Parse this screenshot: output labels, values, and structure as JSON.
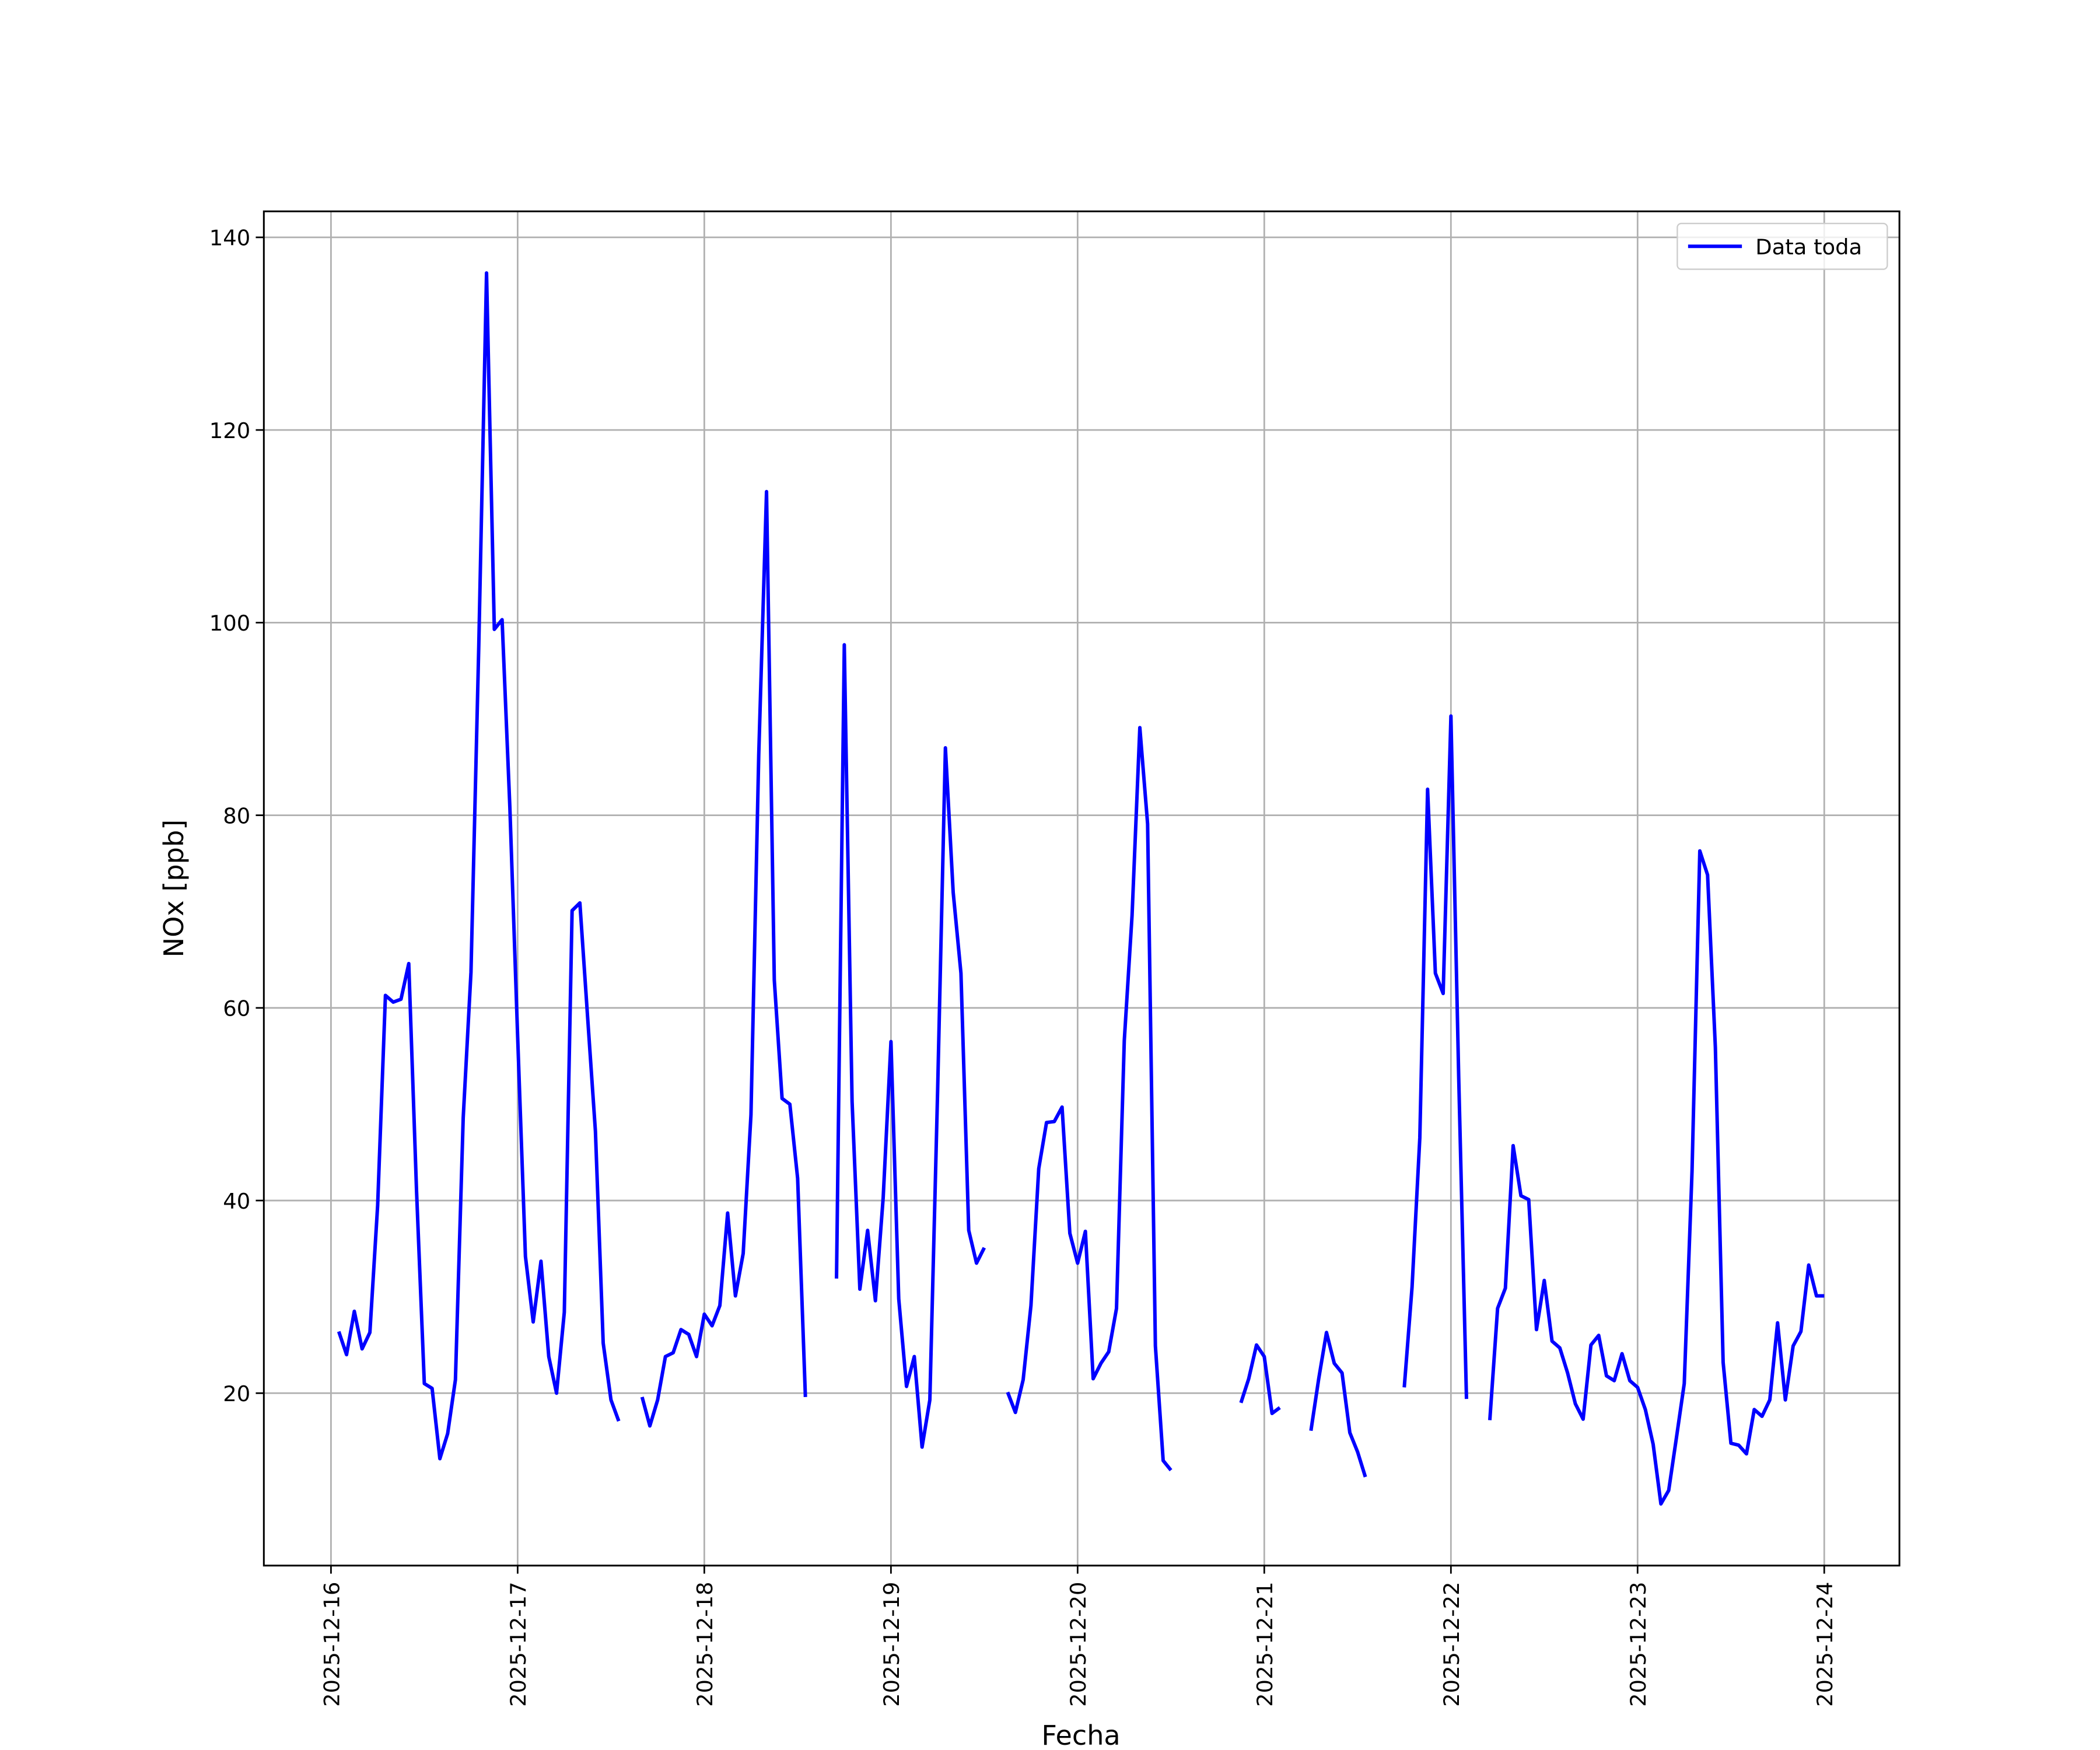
{
  "chart_data": {
    "type": "line",
    "xlabel": "Fecha",
    "ylabel": "NOx [ppb]",
    "legend": "upper right",
    "grid": true,
    "xlim": [
      "2025-12-15 15:22",
      "2025-12-24 09:40"
    ],
    "xticks": [
      "2025-12-16",
      "2025-12-17",
      "2025-12-18",
      "2025-12-19",
      "2025-12-20",
      "2025-12-21",
      "2025-12-22",
      "2025-12-23",
      "2025-12-24"
    ],
    "ylim": [
      2.1,
      142.7
    ],
    "yticks": [
      20,
      40,
      60,
      80,
      100,
      120,
      140
    ],
    "x": [
      "2025-12-16 01:00",
      "2025-12-16 02:00",
      "2025-12-16 03:00",
      "2025-12-16 04:00",
      "2025-12-16 05:00",
      "2025-12-16 06:00",
      "2025-12-16 07:00",
      "2025-12-16 08:00",
      "2025-12-16 09:00",
      "2025-12-16 10:00",
      "2025-12-16 11:00",
      "2025-12-16 12:00",
      "2025-12-16 13:00",
      "2025-12-16 14:00",
      "2025-12-16 15:00",
      "2025-12-16 16:00",
      "2025-12-16 17:00",
      "2025-12-16 18:00",
      "2025-12-16 19:00",
      "2025-12-16 20:00",
      "2025-12-16 21:00",
      "2025-12-16 22:00",
      "2025-12-16 23:00",
      "2025-12-17 00:00",
      "2025-12-17 01:00",
      "2025-12-17 02:00",
      "2025-12-17 03:00",
      "2025-12-17 04:00",
      "2025-12-17 05:00",
      "2025-12-17 06:00",
      "2025-12-17 07:00",
      "2025-12-17 08:00",
      "2025-12-17 09:00",
      "2025-12-17 10:00",
      "2025-12-17 11:00",
      "2025-12-17 12:00",
      "2025-12-17 13:00",
      "2025-12-17 14:00",
      "2025-12-17 15:00",
      "2025-12-17 16:00",
      "2025-12-17 17:00",
      "2025-12-17 18:00",
      "2025-12-17 19:00",
      "2025-12-17 20:00",
      "2025-12-17 21:00",
      "2025-12-17 22:00",
      "2025-12-17 23:00",
      "2025-12-18 00:00",
      "2025-12-18 01:00",
      "2025-12-18 02:00",
      "2025-12-18 03:00",
      "2025-12-18 04:00",
      "2025-12-18 05:00",
      "2025-12-18 06:00",
      "2025-12-18 07:00",
      "2025-12-18 08:00",
      "2025-12-18 09:00",
      "2025-12-18 10:00",
      "2025-12-18 11:00",
      "2025-12-18 12:00",
      "2025-12-18 13:00",
      "2025-12-18 14:00",
      "2025-12-18 15:00",
      "2025-12-18 16:00",
      "2025-12-18 17:00",
      "2025-12-18 18:00",
      "2025-12-18 19:00",
      "2025-12-18 20:00",
      "2025-12-18 21:00",
      "2025-12-18 22:00",
      "2025-12-18 23:00",
      "2025-12-19 00:00",
      "2025-12-19 01:00",
      "2025-12-19 02:00",
      "2025-12-19 03:00",
      "2025-12-19 04:00",
      "2025-12-19 05:00",
      "2025-12-19 06:00",
      "2025-12-19 07:00",
      "2025-12-19 08:00",
      "2025-12-19 09:00",
      "2025-12-19 10:00",
      "2025-12-19 11:00",
      "2025-12-19 12:00",
      "2025-12-19 13:00",
      "2025-12-19 14:00",
      "2025-12-19 15:00",
      "2025-12-19 16:00",
      "2025-12-19 17:00",
      "2025-12-19 18:00",
      "2025-12-19 19:00",
      "2025-12-19 20:00",
      "2025-12-19 21:00",
      "2025-12-19 22:00",
      "2025-12-19 23:00",
      "2025-12-20 00:00",
      "2025-12-20 01:00",
      "2025-12-20 02:00",
      "2025-12-20 03:00",
      "2025-12-20 04:00",
      "2025-12-20 05:00",
      "2025-12-20 06:00",
      "2025-12-20 07:00",
      "2025-12-20 08:00",
      "2025-12-20 09:00",
      "2025-12-20 10:00",
      "2025-12-20 11:00",
      "2025-12-20 12:00",
      "2025-12-20 13:00",
      "2025-12-20 14:00",
      "2025-12-20 15:00",
      "2025-12-20 16:00",
      "2025-12-20 17:00",
      "2025-12-20 18:00",
      "2025-12-20 19:00",
      "2025-12-20 20:00",
      "2025-12-20 21:00",
      "2025-12-20 22:00",
      "2025-12-20 23:00",
      "2025-12-21 00:00",
      "2025-12-21 01:00",
      "2025-12-21 02:00",
      "2025-12-21 03:00",
      "2025-12-21 04:00",
      "2025-12-21 05:00",
      "2025-12-21 06:00",
      "2025-12-21 07:00",
      "2025-12-21 08:00",
      "2025-12-21 09:00",
      "2025-12-21 10:00",
      "2025-12-21 11:00",
      "2025-12-21 12:00",
      "2025-12-21 13:00",
      "2025-12-21 14:00",
      "2025-12-21 15:00",
      "2025-12-21 16:00",
      "2025-12-21 17:00",
      "2025-12-21 18:00",
      "2025-12-21 19:00",
      "2025-12-21 20:00",
      "2025-12-21 21:00",
      "2025-12-21 22:00",
      "2025-12-21 23:00",
      "2025-12-22 00:00",
      "2025-12-22 01:00",
      "2025-12-22 02:00",
      "2025-12-22 03:00",
      "2025-12-22 04:00",
      "2025-12-22 05:00",
      "2025-12-22 06:00",
      "2025-12-22 07:00",
      "2025-12-22 08:00",
      "2025-12-22 09:00",
      "2025-12-22 10:00",
      "2025-12-22 11:00",
      "2025-12-22 12:00",
      "2025-12-22 13:00",
      "2025-12-22 14:00",
      "2025-12-22 15:00",
      "2025-12-22 16:00",
      "2025-12-22 17:00",
      "2025-12-22 18:00",
      "2025-12-22 19:00",
      "2025-12-22 20:00",
      "2025-12-22 21:00",
      "2025-12-22 22:00",
      "2025-12-22 23:00",
      "2025-12-23 00:00",
      "2025-12-23 01:00",
      "2025-12-23 02:00",
      "2025-12-23 03:00",
      "2025-12-23 04:00",
      "2025-12-23 05:00",
      "2025-12-23 06:00",
      "2025-12-23 07:00",
      "2025-12-23 08:00",
      "2025-12-23 09:00",
      "2025-12-23 10:00",
      "2025-12-23 11:00",
      "2025-12-23 12:00",
      "2025-12-23 13:00",
      "2025-12-23 14:00",
      "2025-12-23 15:00",
      "2025-12-23 16:00",
      "2025-12-23 17:00",
      "2025-12-23 18:00",
      "2025-12-23 19:00",
      "2025-12-23 20:00",
      "2025-12-23 21:00",
      "2025-12-23 22:00",
      "2025-12-23 23:00",
      "2025-12-24 00:00"
    ],
    "series": [
      {
        "name": "Data toda",
        "color": "#0000ff",
        "values": [
          26.4,
          24,
          28.5,
          24.6,
          26.3,
          39.5,
          61.3,
          60.6,
          60.9,
          64.6,
          41,
          21,
          20.5,
          13.2,
          15.8,
          21.4,
          48.6,
          63.7,
          97.5,
          136.3,
          99.3,
          100.3,
          80.8,
          57,
          34.2,
          27.4,
          33.7,
          23.8,
          20,
          28.4,
          70.1,
          70.9,
          59,
          47.2,
          25.2,
          19.3,
          17.1,
          null,
          null,
          19.6,
          16.6,
          19.3,
          23.8,
          24.2,
          26.6,
          26.1,
          23.8,
          28.2,
          27,
          29.1,
          38.7,
          30.1,
          34.5,
          48.9,
          86.3,
          113.6,
          62.9,
          50.6,
          50,
          42.3,
          19.6,
          null,
          null,
          null,
          31.9,
          97.7,
          50.3,
          30.8,
          36.9,
          29.6,
          40.3,
          56.5,
          29.8,
          20.7,
          23.8,
          14.4,
          19.3,
          51.4,
          87,
          72,
          63.6,
          36.9,
          33.5,
          35.1,
          null,
          null,
          20.1,
          18,
          21.4,
          29.1,
          43.3,
          48.1,
          48.2,
          49.7,
          36.6,
          33.5,
          36.8,
          21.5,
          23.1,
          24.3,
          28.8,
          56.6,
          69.6,
          89.1,
          79.1,
          24.9,
          13,
          12,
          null,
          null,
          null,
          null,
          null,
          null,
          null,
          null,
          19,
          21.5,
          25,
          23.8,
          17.9,
          18.5,
          null,
          null,
          null,
          16.1,
          21.5,
          26.3,
          23.1,
          22.1,
          15.9,
          13.9,
          11.3,
          null,
          null,
          null,
          null,
          20.6,
          31,
          46.5,
          82.7,
          63.6,
          61.5,
          90.3,
          52.8,
          19.4,
          null,
          null,
          17.2,
          28.8,
          30.9,
          45.7,
          40.5,
          40.1,
          26.6,
          31.7,
          25.4,
          24.7,
          22.1,
          18.9,
          17.3,
          25,
          26,
          21.8,
          21.3,
          24.1,
          21.3,
          20.6,
          18.3,
          14.7,
          8.5,
          9.9,
          15.4,
          21,
          43,
          76.3,
          73.8,
          55.9,
          23.2,
          14.8,
          14.6,
          13.7,
          18.3,
          17.6,
          19.3,
          27.3,
          19.3,
          24.9,
          26.4,
          33.3,
          30.1,
          30.1
        ]
      }
    ]
  }
}
